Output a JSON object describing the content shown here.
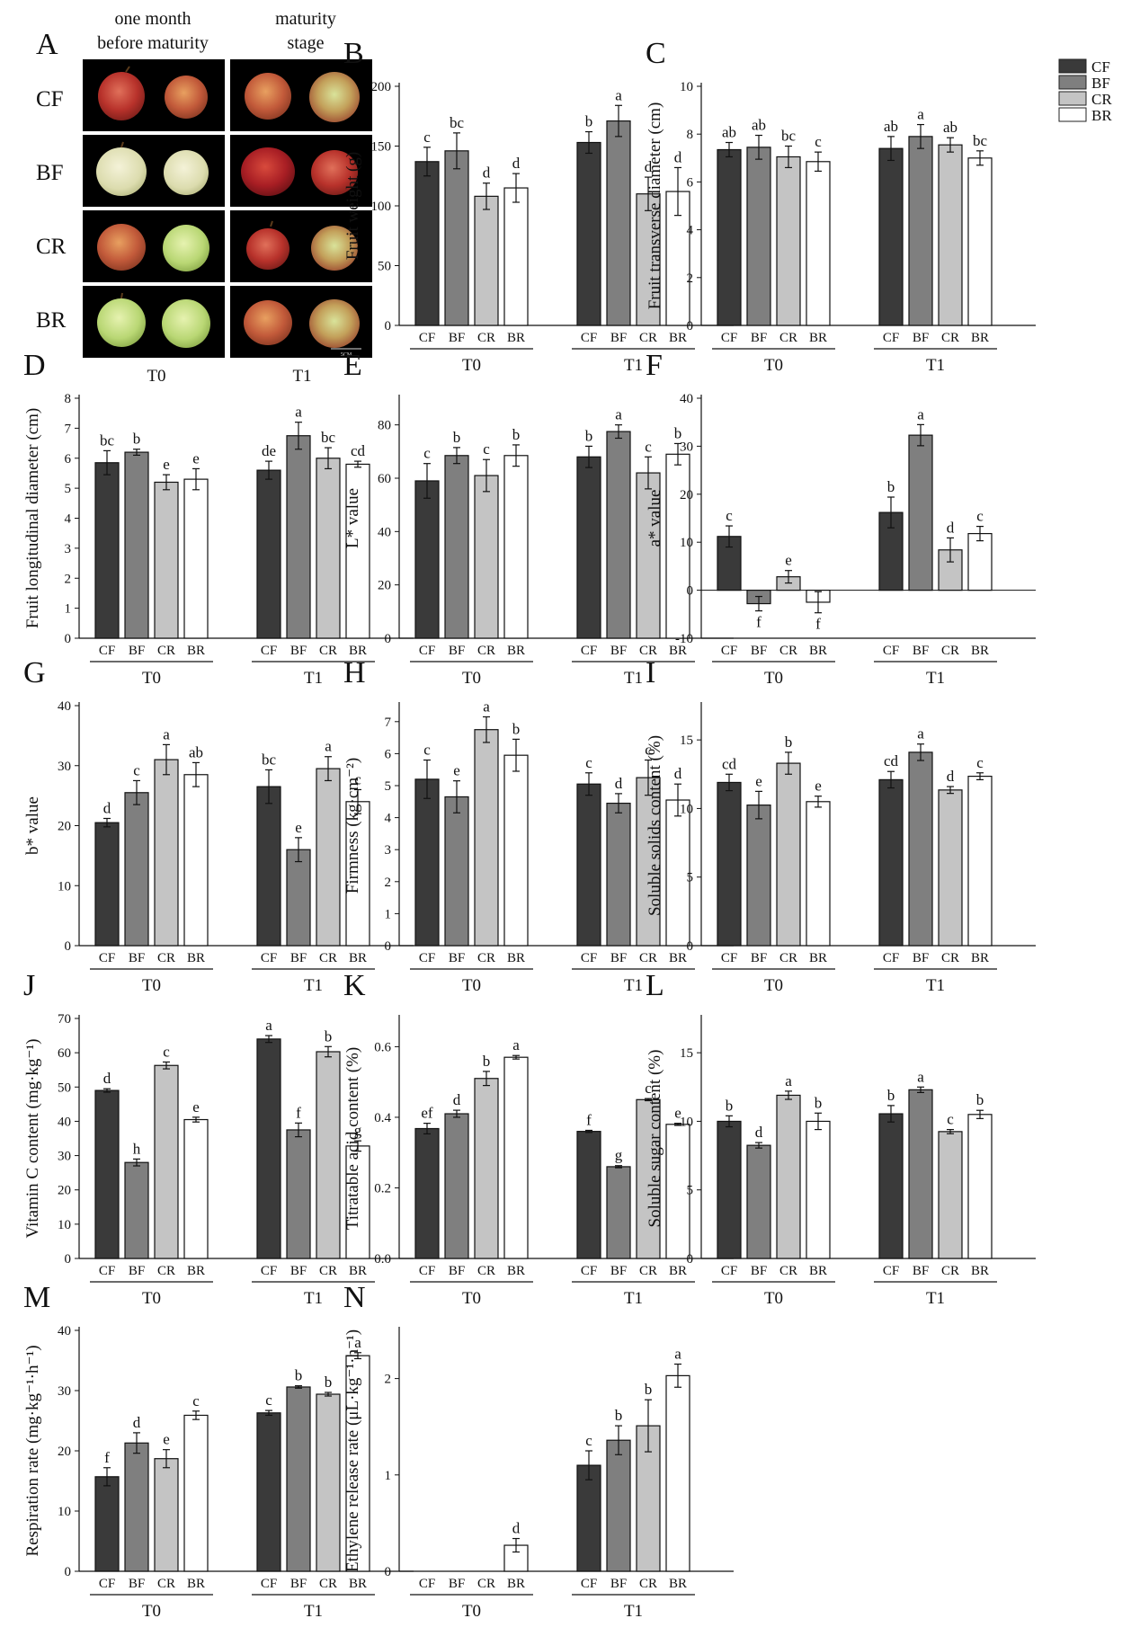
{
  "photo_panel": {
    "label": "A",
    "col_headers": [
      [
        "one month",
        "before maturity"
      ],
      [
        "maturity",
        "stage"
      ]
    ],
    "row_labels": [
      "CF",
      "BF",
      "CR",
      "BR"
    ],
    "group_labels": [
      "T0",
      "T1"
    ],
    "scale_bar": "5CM"
  },
  "legend": {
    "entries": [
      "CF",
      "BF",
      "CR",
      "BR"
    ]
  },
  "colors": {
    "CF": "#3a3a3a",
    "BF": "#7f7f7f",
    "CR": "#c4c4c4",
    "BR": "#ffffff"
  },
  "chart_data": [
    {
      "id": "B",
      "type": "bar",
      "ylabel": "Fruit weight (g)",
      "ylim": [
        0,
        200
      ],
      "yticks": [
        0,
        50,
        100,
        150,
        200
      ],
      "groups": [
        "T0",
        "T1"
      ],
      "categories": [
        "CF",
        "BF",
        "CR",
        "BR"
      ],
      "values": [
        [
          137,
          146,
          108,
          115
        ],
        [
          153,
          171,
          110,
          112
        ]
      ],
      "errors": [
        [
          12,
          15,
          11,
          12
        ],
        [
          9,
          13,
          14,
          20
        ]
      ],
      "letters": [
        [
          "c",
          "bc",
          "d",
          "d"
        ],
        [
          "b",
          "a",
          "d",
          "d"
        ]
      ]
    },
    {
      "id": "C",
      "type": "bar",
      "ylabel": "Fruit transverse diameter (cm)",
      "ylim": [
        0,
        10
      ],
      "yticks": [
        0,
        2,
        4,
        6,
        8,
        10
      ],
      "groups": [
        "T0",
        "T1"
      ],
      "categories": [
        "CF",
        "BF",
        "CR",
        "BR"
      ],
      "values": [
        [
          7.35,
          7.45,
          7.05,
          6.85
        ],
        [
          7.4,
          7.9,
          7.55,
          7.0
        ]
      ],
      "errors": [
        [
          0.3,
          0.5,
          0.45,
          0.4
        ],
        [
          0.5,
          0.5,
          0.3,
          0.3
        ]
      ],
      "letters": [
        [
          "ab",
          "ab",
          "bc",
          "c"
        ],
        [
          "ab",
          "a",
          "ab",
          "bc"
        ]
      ]
    },
    {
      "id": "D",
      "type": "bar",
      "ylabel": "Fruit longitudinal diameter (cm)",
      "ylim": [
        0,
        8
      ],
      "yticks": [
        0,
        1,
        2,
        3,
        4,
        5,
        6,
        7,
        8
      ],
      "groups": [
        "T0",
        "T1"
      ],
      "categories": [
        "CF",
        "BF",
        "CR",
        "BR"
      ],
      "values": [
        [
          5.85,
          6.2,
          5.2,
          5.3
        ],
        [
          5.6,
          6.75,
          6.0,
          5.8
        ]
      ],
      "errors": [
        [
          0.4,
          0.1,
          0.25,
          0.35
        ],
        [
          0.3,
          0.45,
          0.35,
          0.1
        ]
      ],
      "letters": [
        [
          "bc",
          "b",
          "e",
          "e"
        ],
        [
          "de",
          "a",
          "bc",
          "cd"
        ]
      ]
    },
    {
      "id": "E",
      "type": "bar",
      "ylabel": "L* value",
      "ylim": [
        0,
        90
      ],
      "yticks": [
        0,
        20,
        40,
        60,
        80
      ],
      "groups": [
        "T0",
        "T1"
      ],
      "categories": [
        "CF",
        "BF",
        "CR",
        "BR"
      ],
      "values": [
        [
          59,
          68.5,
          61,
          68.5
        ],
        [
          68,
          77.5,
          62,
          69
        ]
      ],
      "errors": [
        [
          6.5,
          3,
          6,
          4
        ],
        [
          4,
          2.5,
          6,
          4
        ]
      ],
      "letters": [
        [
          "c",
          "b",
          "c",
          "b"
        ],
        [
          "b",
          "a",
          "c",
          "b"
        ]
      ]
    },
    {
      "id": "F",
      "type": "bar",
      "ylabel": "a* value",
      "ylim": [
        -10,
        40
      ],
      "yticks": [
        -10,
        0,
        10,
        20,
        30,
        40
      ],
      "groups": [
        "T0",
        "T1"
      ],
      "categories": [
        "CF",
        "BF",
        "CR",
        "BR"
      ],
      "values": [
        [
          11.2,
          -2.8,
          2.8,
          -2.5
        ],
        [
          16.2,
          32.3,
          8.4,
          11.8
        ]
      ],
      "errors": [
        [
          2.2,
          1.5,
          1.3,
          2.2
        ],
        [
          3.2,
          2.2,
          2.5,
          1.5
        ]
      ],
      "letters": [
        [
          "c",
          "f",
          "e",
          "f"
        ],
        [
          "b",
          "a",
          "d",
          "c"
        ]
      ]
    },
    {
      "id": "G",
      "type": "bar",
      "ylabel": "b* value",
      "ylim": [
        0,
        40
      ],
      "yticks": [
        0,
        10,
        20,
        30,
        40
      ],
      "groups": [
        "T0",
        "T1"
      ],
      "categories": [
        "CF",
        "BF",
        "CR",
        "BR"
      ],
      "values": [
        [
          20.5,
          25.5,
          31,
          28.5
        ],
        [
          26.5,
          16,
          29.5,
          24
        ]
      ],
      "errors": [
        [
          0.7,
          2,
          2.5,
          2
        ],
        [
          2.8,
          2,
          2,
          2
        ]
      ],
      "letters": [
        [
          "d",
          "c",
          "a",
          "ab"
        ],
        [
          "bc",
          "e",
          "a",
          "c"
        ]
      ]
    },
    {
      "id": "H",
      "type": "bar",
      "ylabel": "Firmness (kg·cm⁻²)",
      "ylim": [
        0,
        7.5
      ],
      "yticks": [
        0,
        1,
        2,
        3,
        4,
        5,
        6,
        7
      ],
      "groups": [
        "T0",
        "T1"
      ],
      "categories": [
        "CF",
        "BF",
        "CR",
        "BR"
      ],
      "values": [
        [
          5.2,
          4.65,
          6.75,
          5.95
        ],
        [
          5.05,
          4.45,
          5.25,
          4.55
        ]
      ],
      "errors": [
        [
          0.6,
          0.5,
          0.4,
          0.5
        ],
        [
          0.35,
          0.3,
          0.55,
          0.5
        ]
      ],
      "letters": [
        [
          "c",
          "e",
          "a",
          "b"
        ],
        [
          "c",
          "d",
          "c",
          "d"
        ]
      ]
    },
    {
      "id": "I",
      "type": "bar",
      "ylabel": "Soluble solids content (%)",
      "ylim": [
        0,
        17.5
      ],
      "yticks": [
        0,
        5,
        10,
        15
      ],
      "groups": [
        "T0",
        "T1"
      ],
      "categories": [
        "CF",
        "BF",
        "CR",
        "BR"
      ],
      "values": [
        [
          11.9,
          10.25,
          13.3,
          10.5
        ],
        [
          12.1,
          14.1,
          11.35,
          12.35
        ]
      ],
      "errors": [
        [
          0.6,
          1.0,
          0.8,
          0.4
        ],
        [
          0.6,
          0.6,
          0.25,
          0.25
        ]
      ],
      "letters": [
        [
          "cd",
          "e",
          "b",
          "e"
        ],
        [
          "cd",
          "a",
          "d",
          "c"
        ]
      ]
    },
    {
      "id": "J",
      "type": "bar",
      "ylabel": "Vitamin C content (mg·kg⁻¹)",
      "ylim": [
        0,
        70
      ],
      "yticks": [
        0,
        10,
        20,
        30,
        40,
        50,
        60,
        70
      ],
      "groups": [
        "T0",
        "T1"
      ],
      "categories": [
        "CF",
        "BF",
        "CR",
        "BR"
      ],
      "values": [
        [
          49,
          28,
          56.3,
          40.5
        ],
        [
          64,
          37.5,
          60.3,
          32.8
        ]
      ],
      "errors": [
        [
          0.5,
          1,
          1,
          0.7
        ],
        [
          1,
          2,
          1.5,
          1.5
        ]
      ],
      "letters": [
        [
          "d",
          "h",
          "c",
          "e"
        ],
        [
          "a",
          "f",
          "b",
          "g"
        ]
      ]
    },
    {
      "id": "K",
      "type": "bar",
      "ylabel": "Titratable acid content (%)",
      "ylim": [
        0,
        0.68
      ],
      "yticks": [
        0.0,
        0.2,
        0.4,
        0.6
      ],
      "tick_decimals": 1,
      "groups": [
        "T0",
        "T1"
      ],
      "categories": [
        "CF",
        "BF",
        "CR",
        "BR"
      ],
      "values": [
        [
          0.368,
          0.41,
          0.51,
          0.57
        ],
        [
          0.36,
          0.26,
          0.45,
          0.38
        ]
      ],
      "errors": [
        [
          0.015,
          0.01,
          0.02,
          0.005
        ],
        [
          0.003,
          0.003,
          0.003,
          0.003
        ]
      ],
      "letters": [
        [
          "ef",
          "d",
          "b",
          "a"
        ],
        [
          "f",
          "g",
          "c",
          "e"
        ]
      ]
    },
    {
      "id": "L",
      "type": "bar",
      "ylabel": "Soluble sugar content (%)",
      "ylim": [
        0,
        17.5
      ],
      "yticks": [
        0,
        5,
        10,
        15
      ],
      "groups": [
        "T0",
        "T1"
      ],
      "categories": [
        "CF",
        "BF",
        "CR",
        "BR"
      ],
      "values": [
        [
          10.0,
          8.25,
          11.9,
          10.0
        ],
        [
          10.55,
          12.3,
          9.25,
          10.5
        ]
      ],
      "errors": [
        [
          0.4,
          0.2,
          0.3,
          0.6
        ],
        [
          0.6,
          0.2,
          0.15,
          0.3
        ]
      ],
      "letters": [
        [
          "b",
          "d",
          "a",
          "b"
        ],
        [
          "b",
          "a",
          "c",
          "b"
        ]
      ]
    },
    {
      "id": "M",
      "type": "bar",
      "ylabel": "Respiration rate (mg·kg⁻¹·h⁻¹)",
      "ylim": [
        0,
        40
      ],
      "yticks": [
        0,
        10,
        20,
        30,
        40
      ],
      "groups": [
        "T0",
        "T1"
      ],
      "categories": [
        "CF",
        "BF",
        "CR",
        "BR"
      ],
      "values": [
        [
          15.7,
          21.3,
          18.7,
          25.9
        ],
        [
          26.3,
          30.6,
          29.4,
          35.8
        ]
      ],
      "errors": [
        [
          1.5,
          1.7,
          1.5,
          0.7
        ],
        [
          0.4,
          0.2,
          0.3,
          0.5
        ]
      ],
      "letters": [
        [
          "f",
          "d",
          "e",
          "c"
        ],
        [
          "c",
          "b",
          "b",
          "a"
        ]
      ]
    },
    {
      "id": "N",
      "type": "bar",
      "ylabel": "Ethylene release rate (μL·kg⁻¹·h⁻¹)",
      "ylim": [
        0,
        2.5
      ],
      "yticks": [
        0,
        1,
        2
      ],
      "groups": [
        "T0",
        "T1"
      ],
      "categories": [
        "CF",
        "BF",
        "CR",
        "BR"
      ],
      "values": [
        [
          0,
          0,
          0,
          0.27
        ],
        [
          1.1,
          1.36,
          1.51,
          2.03
        ]
      ],
      "errors": [
        [
          0,
          0,
          0,
          0.07
        ],
        [
          0.15,
          0.15,
          0.27,
          0.12
        ]
      ],
      "letters": [
        [
          "",
          "",
          "",
          "d"
        ],
        [
          "c",
          "b",
          "b",
          "a"
        ]
      ]
    }
  ]
}
